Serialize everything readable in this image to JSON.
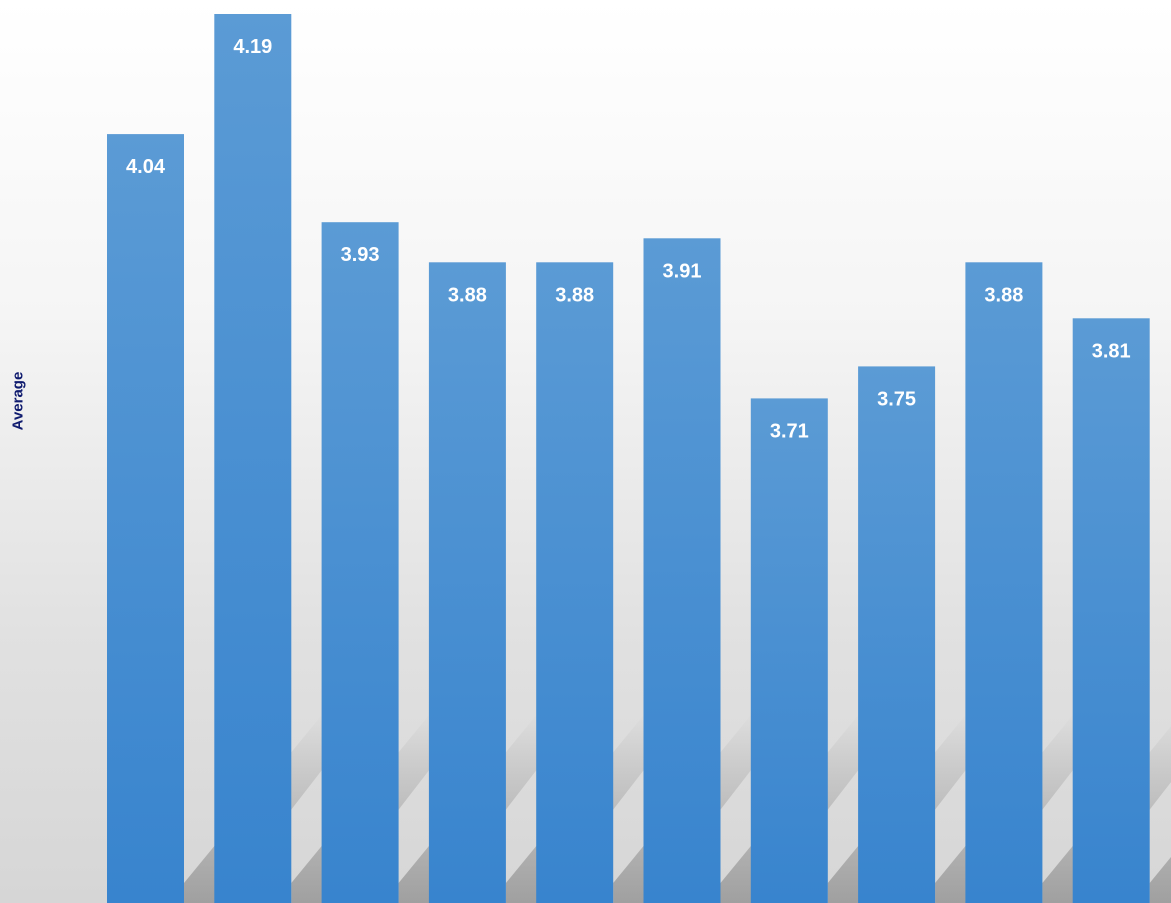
{
  "chart_data": {
    "type": "bar",
    "title": "",
    "xlabel": "",
    "ylabel": "Average",
    "categories": [
      "",
      "",
      "",
      "",
      "",
      "",
      "",
      "",
      "",
      ""
    ],
    "values": [
      4.04,
      4.19,
      3.93,
      3.88,
      3.88,
      3.91,
      3.71,
      3.75,
      3.88,
      3.81
    ],
    "data_labels": [
      "4.04",
      "4.19",
      "3.93",
      "3.88",
      "3.88",
      "3.91",
      "3.71",
      "3.75",
      "3.88",
      "3.81"
    ],
    "ylim": [
      3.08,
      4.2
    ],
    "grid": false,
    "legend": "none",
    "colors": {
      "bar_top": "#5b9bd5",
      "bar_bottom": "#3884ce",
      "label": "#ffffff",
      "axis_title": "#0e1a6e"
    }
  }
}
